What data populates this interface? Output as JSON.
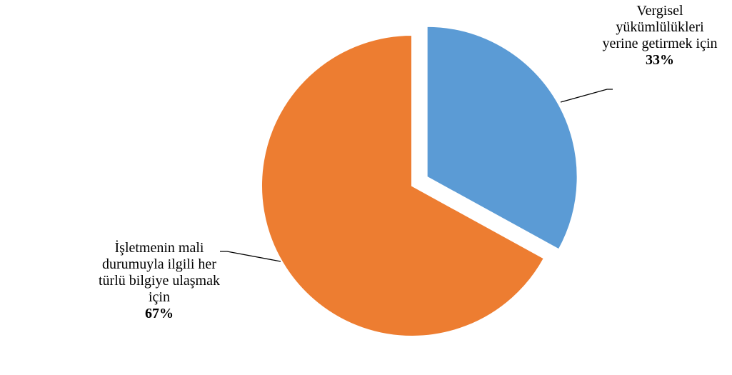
{
  "chart_data": {
    "type": "pie",
    "categories": [
      "Vergisel yükümlülükleri yerine getirmek için",
      "İşletmenin mali durumuyla ilgili her türlü bilgiye ulaşmak için"
    ],
    "values": [
      33,
      67
    ],
    "value_labels": [
      "33%",
      "67%"
    ],
    "colors": [
      "#5b9bd5",
      "#ed7d31"
    ]
  }
}
